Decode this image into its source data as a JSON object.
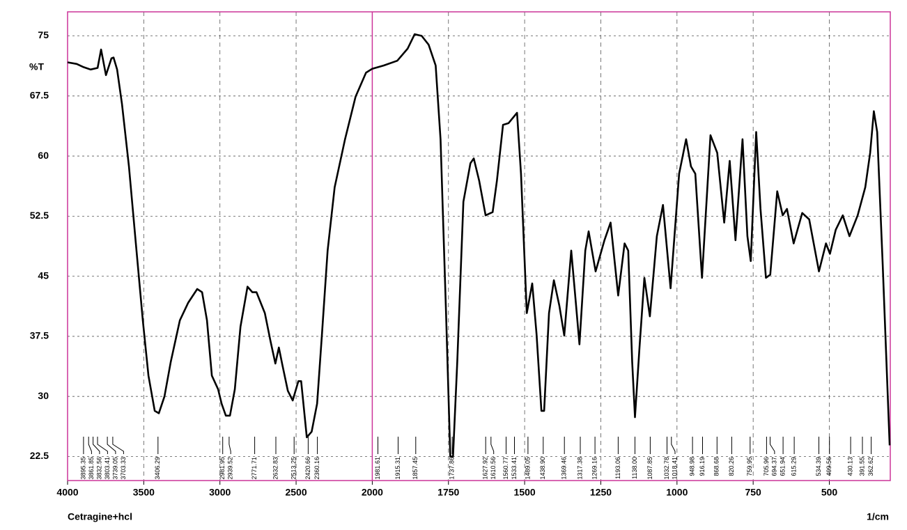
{
  "chart_data": {
    "type": "line",
    "title": "Cetragine+hcl",
    "x_label": "1/cm",
    "y_label": "%T",
    "color": "#000000",
    "frame_color": "#cc3399",
    "grid": true,
    "xlim": [
      4000,
      300
    ],
    "x_break": 2000,
    "x_scale_factor_below_break": 2,
    "ylim": [
      19.5,
      78
    ],
    "xticks": [
      4000,
      3500,
      3000,
      2500,
      2000,
      1750,
      1500,
      1250,
      1000,
      750,
      500
    ],
    "yticks": [
      22.5,
      30,
      37.5,
      45,
      52.5,
      60,
      67.5,
      75
    ],
    "x": [
      4000,
      3940,
      3895,
      3849,
      3803,
      3780,
      3748,
      3712,
      3698,
      3675,
      3643,
      3597,
      3552,
      3506,
      3469,
      3428,
      3401,
      3364,
      3323,
      3263,
      3208,
      3149,
      3117,
      3085,
      3053,
      3012,
      2989,
      2961,
      2934,
      2902,
      2865,
      2819,
      2787,
      2760,
      2705,
      2668,
      2636,
      2613,
      2590,
      2554,
      2522,
      2485,
      2467,
      2430,
      2398,
      2362,
      2330,
      2293,
      2247,
      2179,
      2110,
      2041,
      2000,
      1963,
      1918,
      1884,
      1861,
      1838,
      1815,
      1792,
      1776,
      1758,
      1744,
      1735,
      1721,
      1701,
      1678,
      1667,
      1649,
      1628,
      1605,
      1591,
      1571,
      1553,
      1525,
      1512,
      1493,
      1475,
      1461,
      1445,
      1436,
      1420,
      1404,
      1386,
      1370,
      1347,
      1333,
      1320,
      1301,
      1290,
      1267,
      1238,
      1218,
      1193,
      1172,
      1160,
      1147,
      1138,
      1123,
      1107,
      1089,
      1066,
      1046,
      1021,
      993,
      970,
      954,
      940,
      918,
      890,
      868,
      845,
      827,
      808,
      785,
      769,
      758,
      740,
      726,
      708,
      694,
      671,
      653,
      639,
      617,
      589,
      566,
      534,
      511,
      498,
      479,
      456,
      434,
      407,
      382,
      366,
      354,
      343,
      325,
      302
    ],
    "y": [
      71.7,
      71.5,
      71.1,
      70.8,
      71.0,
      73.3,
      70.1,
      72.2,
      72.3,
      70.8,
      66.5,
      58.7,
      49.1,
      39.5,
      32.6,
      28.2,
      27.9,
      30.0,
      34.3,
      39.5,
      41.7,
      43.4,
      43.0,
      39.5,
      32.6,
      30.9,
      29.1,
      27.6,
      27.6,
      30.9,
      38.7,
      43.7,
      43.0,
      43.0,
      40.4,
      36.9,
      34.1,
      36.1,
      33.9,
      30.7,
      29.5,
      31.9,
      31.9,
      24.9,
      25.6,
      29.1,
      37.8,
      48.2,
      56.1,
      62.1,
      67.4,
      70.4,
      70.9,
      71.3,
      71.9,
      73.4,
      75.2,
      75.0,
      73.9,
      71.3,
      62.1,
      40.4,
      22.5,
      22.5,
      34.3,
      54.3,
      59.1,
      59.7,
      56.9,
      52.6,
      53.0,
      56.9,
      63.9,
      64.1,
      65.4,
      57.8,
      40.4,
      44.1,
      37.8,
      28.2,
      28.2,
      40.4,
      44.5,
      41.3,
      37.6,
      48.2,
      42.1,
      36.5,
      48.2,
      50.6,
      45.6,
      49.5,
      51.7,
      42.6,
      49.1,
      48.2,
      34.3,
      27.4,
      36.1,
      44.8,
      40.0,
      50.0,
      53.9,
      43.5,
      57.8,
      62.1,
      58.7,
      57.8,
      44.8,
      62.6,
      60.4,
      51.7,
      59.4,
      49.5,
      62.1,
      50.0,
      46.9,
      63.0,
      53.4,
      44.8,
      45.2,
      55.6,
      52.6,
      53.4,
      49.1,
      52.9,
      52.1,
      45.6,
      49.1,
      47.8,
      50.8,
      52.6,
      50.0,
      52.6,
      56.1,
      60.4,
      65.6,
      63.0,
      46.5,
      23.9
    ],
    "peaks": [
      3895.35,
      3861.85,
      3832.56,
      3803.41,
      3739.05,
      3703.33,
      3406.29,
      2981.95,
      2939.52,
      2771.71,
      2632.83,
      2513.25,
      2420.66,
      2360.16,
      1981.61,
      1915.31,
      1857.45,
      1737.86,
      1627.92,
      1610.56,
      1560.77,
      1533.41,
      1489.05,
      {
        "value": 1438.9,
        "label": "1438.90"
      },
      1369.46,
      1317.38,
      1269.16,
      1193.06,
      {
        "value": 1138,
        "label": "1138.00"
      },
      1087.85,
      1032.78,
      1018.41,
      948.98,
      916.19,
      868.68,
      820.26,
      759.95,
      705.96,
      694.37,
      651.94,
      615.29,
      534.39,
      499.56,
      430.13,
      391.55,
      362.62
    ]
  }
}
